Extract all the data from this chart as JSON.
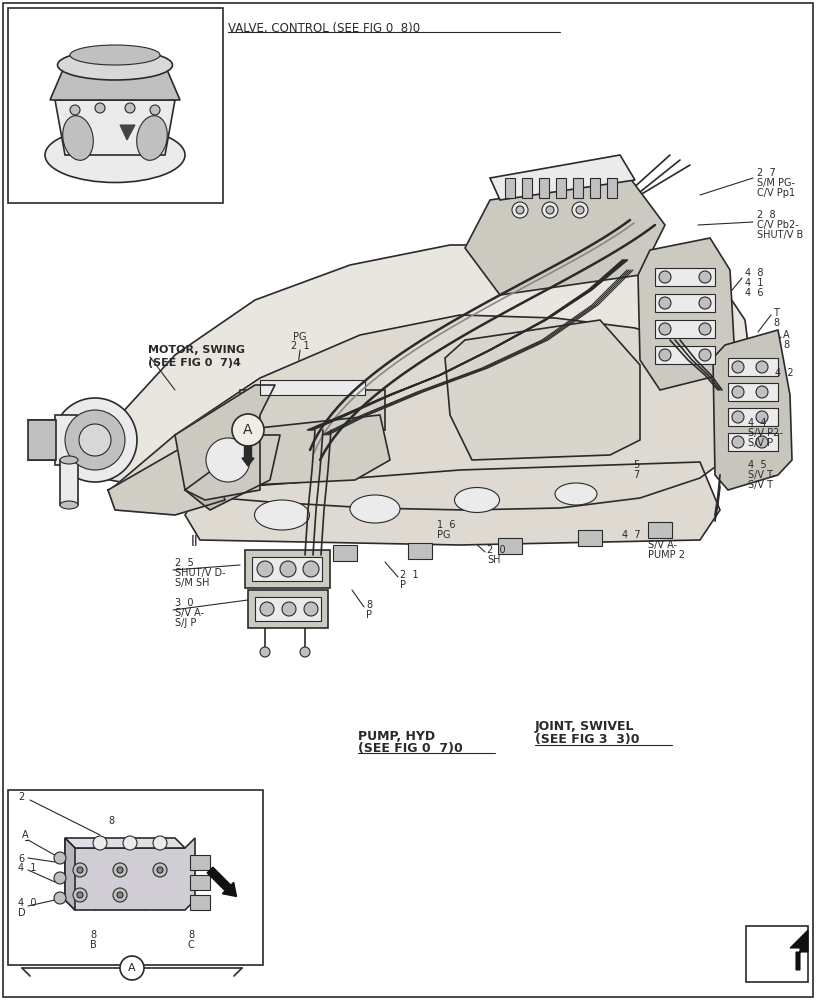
{
  "bg_color": "#ffffff",
  "line_color": "#2a2a2a",
  "gray_fill": "#d8d8d8",
  "light_gray": "#ebebeb",
  "mid_gray": "#c0c0c0",
  "fig_width": 8.16,
  "fig_height": 10.0,
  "labels": {
    "valve_control": "VALVE, CONTROL (SEE FIG 0  8)0",
    "motor_swing_1": "MOTOR, SWING",
    "motor_swing_2": "(SEE FIG 0  7)4",
    "pump_hyd_1": "PUMP, HYD",
    "pump_hyd_2": "(SEE FIG 0  7)0",
    "joint_swivel_1": "JOINT, SWIVEL",
    "joint_swivel_2": "(SEE FIG 3  3)0",
    "sm_pg_1": "S/M PG-",
    "sm_pg_2": "C/V Pp1",
    "cv_pb2_1": "C/V Pb2-",
    "cv_pb2_2": "SHUT/V B",
    "sv_p2_1": "S/V P2-",
    "sv_p2_2": "S/V P",
    "sv_t_1": "S/V T-",
    "sv_t_2": "S/V T",
    "sv_a_pump2_1": "S/V A-",
    "sv_a_pump2_2": "PUMP 2",
    "shutv_d_1": "SHUT/V D-",
    "shutv_d_2": "S/M SH",
    "sv_a_sjp_1": "S/V A-",
    "sv_a_sjp_2": "S/J P"
  }
}
